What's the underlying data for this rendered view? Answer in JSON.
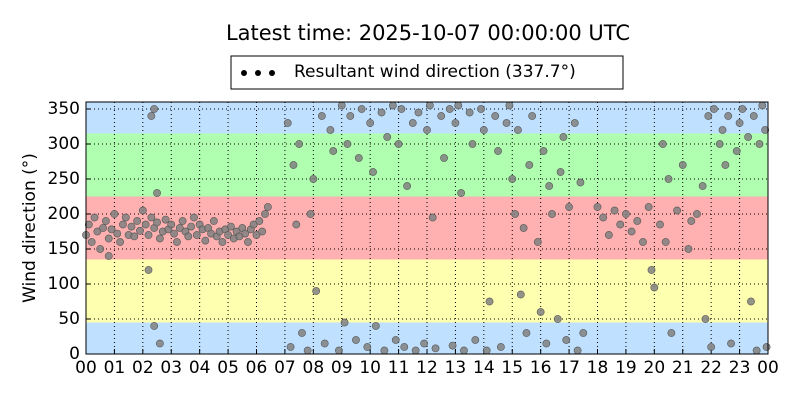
{
  "chart_data": {
    "type": "scatter",
    "title": "Latest time: 2025-10-07 00:00:00 UTC",
    "y_label": "Wind direction (°)",
    "xlim": [
      0,
      24
    ],
    "ylim": [
      0,
      360
    ],
    "xticks": [
      {
        "value": 0,
        "label": "00"
      },
      {
        "value": 1,
        "label": "01"
      },
      {
        "value": 2,
        "label": "02"
      },
      {
        "value": 3,
        "label": "03"
      },
      {
        "value": 4,
        "label": "04"
      },
      {
        "value": 5,
        "label": "05"
      },
      {
        "value": 6,
        "label": "06"
      },
      {
        "value": 7,
        "label": "07"
      },
      {
        "value": 8,
        "label": "08"
      },
      {
        "value": 9,
        "label": "09"
      },
      {
        "value": 10,
        "label": "10"
      },
      {
        "value": 11,
        "label": "11"
      },
      {
        "value": 12,
        "label": "12"
      },
      {
        "value": 13,
        "label": "13"
      },
      {
        "value": 14,
        "label": "14"
      },
      {
        "value": 15,
        "label": "15"
      },
      {
        "value": 16,
        "label": "16"
      },
      {
        "value": 17,
        "label": "17"
      },
      {
        "value": 18,
        "label": "18"
      },
      {
        "value": 19,
        "label": "19"
      },
      {
        "value": 20,
        "label": "20"
      },
      {
        "value": 21,
        "label": "21"
      },
      {
        "value": 22,
        "label": "22"
      },
      {
        "value": 23,
        "label": "23"
      },
      {
        "value": 24,
        "label": "00"
      }
    ],
    "yticks": [
      0,
      50,
      100,
      150,
      200,
      250,
      300,
      350
    ],
    "grid": true,
    "bands": [
      {
        "from": 0,
        "to": 45,
        "color": "#bfe0ff"
      },
      {
        "from": 45,
        "to": 135,
        "color": "#ffffb0"
      },
      {
        "from": 135,
        "to": 225,
        "color": "#ffb0b0"
      },
      {
        "from": 225,
        "to": 315,
        "color": "#b0ffb0"
      },
      {
        "from": 315,
        "to": 360,
        "color": "#bfe0ff"
      }
    ],
    "legend": "upper center",
    "x": [
      0,
      0.1,
      0.2,
      0.3,
      0.4,
      0.5,
      0.6,
      0.7,
      0.8,
      0.9,
      1,
      1.1,
      1.2,
      1.3,
      1.4,
      1.5,
      1.6,
      1.7,
      1.8,
      1.9,
      2,
      2.1,
      2.2,
      2.3,
      2.4,
      2.5,
      2.6,
      2.7,
      2.8,
      2.9,
      3,
      3.1,
      3.2,
      3.3,
      3.4,
      3.5,
      3.6,
      3.7,
      3.8,
      3.9,
      4,
      4.1,
      4.2,
      4.3,
      4.4,
      4.5,
      4.6,
      4.7,
      4.8,
      4.9,
      5,
      5.1,
      5.2,
      5.3,
      5.4,
      5.5,
      5.6,
      5.7,
      5.8,
      5.9,
      6,
      6.1,
      6.2,
      6.3,
      6.4,
      2.3,
      2.4,
      2.5,
      2.2,
      2.4,
      2.6,
      0.8,
      7.1,
      7.2,
      7.3,
      7.4,
      7.5,
      7.6,
      7.8,
      7.9,
      8,
      8.1,
      8.3,
      8.4,
      8.6,
      8.7,
      8.9,
      9,
      9.1,
      9.2,
      9.3,
      9.5,
      9.6,
      9.7,
      9.9,
      10,
      10.1,
      10.2,
      10.4,
      10.5,
      10.6,
      10.8,
      10.9,
      11,
      11.1,
      11.2,
      11.3,
      11.5,
      11.6,
      11.7,
      11.9,
      12,
      12.1,
      12.2,
      12.3,
      12.5,
      12.6,
      12.8,
      12.9,
      13,
      13.1,
      13.2,
      13.3,
      13.5,
      13.6,
      13.7,
      13.9,
      14,
      14.1,
      14.2,
      14.4,
      14.5,
      14.6,
      14.8,
      14.9,
      15,
      15.1,
      15.2,
      15.3,
      15.4,
      15.5,
      15.6,
      15.7,
      15.9,
      16,
      16.1,
      16.2,
      16.3,
      16.4,
      16.6,
      16.7,
      16.8,
      16.9,
      17,
      17.2,
      17.3,
      17.4,
      17.5,
      18,
      18.2,
      18.4,
      18.6,
      18.8,
      19,
      19.2,
      19.4,
      19.6,
      19.8,
      19.9,
      20,
      20.2,
      20.3,
      20.4,
      20.5,
      20.6,
      20.8,
      21,
      21.2,
      21.3,
      21.5,
      21.7,
      21.8,
      21.9,
      22,
      22.1,
      22.3,
      22.4,
      22.5,
      22.6,
      22.7,
      22.9,
      23,
      23.1,
      23.3,
      23.4,
      23.5,
      23.6,
      23.7,
      23.8,
      23.9,
      23.95
    ],
    "series": [
      {
        "name": "Resultant wind direction (337.7°)",
        "color": "#808080",
        "values": [
          170,
          185,
          160,
          195,
          175,
          150,
          180,
          190,
          165,
          178,
          200,
          172,
          160,
          185,
          195,
          170,
          182,
          168,
          190,
          176,
          205,
          185,
          170,
          195,
          180,
          188,
          165,
          175,
          192,
          178,
          185,
          172,
          160,
          180,
          190,
          175,
          168,
          182,
          195,
          170,
          185,
          178,
          162,
          180,
          172,
          190,
          168,
          175,
          160,
          178,
          170,
          182,
          165,
          175,
          168,
          180,
          172,
          160,
          178,
          185,
          170,
          190,
          175,
          200,
          210,
          340,
          350,
          230,
          120,
          40,
          15,
          140,
          330,
          10,
          270,
          185,
          300,
          30,
          5,
          200,
          250,
          90,
          340,
          15,
          320,
          290,
          5,
          355,
          45,
          300,
          340,
          20,
          280,
          350,
          10,
          330,
          260,
          40,
          345,
          5,
          310,
          355,
          20,
          300,
          350,
          10,
          240,
          330,
          5,
          345,
          15,
          320,
          355,
          195,
          8,
          340,
          280,
          350,
          12,
          330,
          355,
          230,
          5,
          345,
          300,
          20,
          350,
          320,
          5,
          75,
          340,
          290,
          10,
          330,
          355,
          250,
          200,
          320,
          85,
          180,
          30,
          270,
          340,
          160,
          60,
          290,
          15,
          240,
          200,
          50,
          260,
          310,
          20,
          210,
          330,
          5,
          245,
          30,
          210,
          195,
          170,
          205,
          185,
          200,
          175,
          190,
          160,
          210,
          120,
          95,
          185,
          300,
          160,
          250,
          30,
          205,
          270,
          150,
          190,
          200,
          240,
          50,
          340,
          10,
          350,
          300,
          320,
          270,
          340,
          15,
          290,
          330,
          350,
          310,
          75,
          340,
          5,
          300,
          355,
          320,
          10
        ]
      }
    ]
  }
}
